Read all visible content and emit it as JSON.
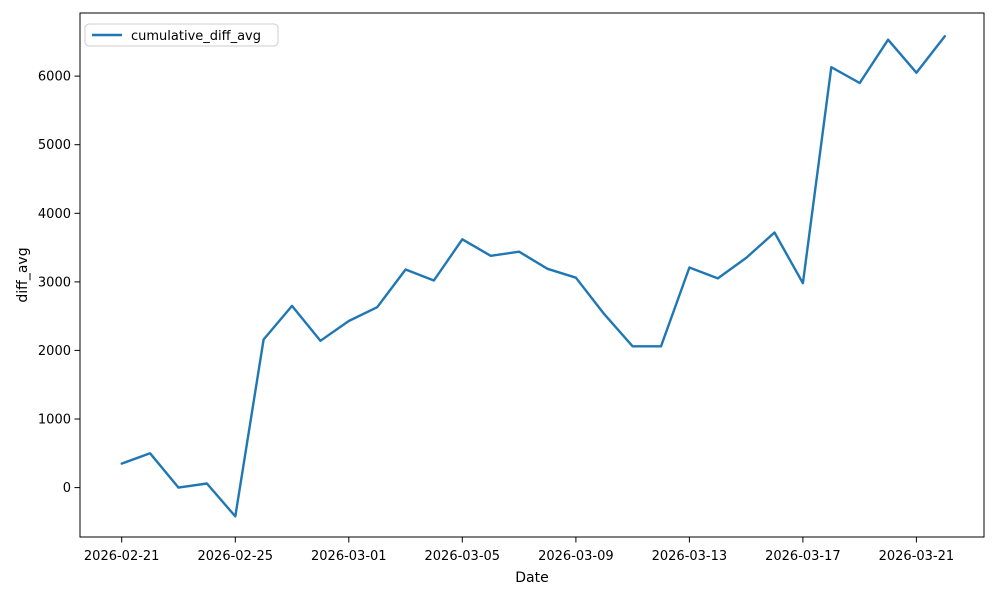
{
  "figure": {
    "background": "#ffffff"
  },
  "chart_data": {
    "type": "line",
    "title": "",
    "xlabel": "Date",
    "ylabel": "diff_avg",
    "grid": false,
    "legend": {
      "position": "upper-left",
      "entries": [
        "cumulative_diff_avg"
      ]
    },
    "line_color": "#1f77b4",
    "categories": [
      "2026-02-21",
      "2026-02-22",
      "2026-02-23",
      "2026-02-24",
      "2026-02-25",
      "2026-02-26",
      "2026-02-27",
      "2026-02-28",
      "2026-03-01",
      "2026-03-02",
      "2026-03-03",
      "2026-03-04",
      "2026-03-05",
      "2026-03-06",
      "2026-03-07",
      "2026-03-08",
      "2026-03-09",
      "2026-03-10",
      "2026-03-11",
      "2026-03-12",
      "2026-03-13",
      "2026-03-14",
      "2026-03-15",
      "2026-03-16",
      "2026-03-17",
      "2026-03-18",
      "2026-03-19",
      "2026-03-20",
      "2026-03-21",
      "2026-03-22"
    ],
    "series": [
      {
        "name": "cumulative_diff_avg",
        "values": [
          350,
          500,
          0,
          60,
          -420,
          2160,
          2650,
          2140,
          2430,
          2630,
          3180,
          3020,
          3620,
          3380,
          3440,
          3190,
          3060,
          2530,
          2060,
          2060,
          3210,
          3050,
          3350,
          3720,
          2980,
          6130,
          5900,
          6530,
          6050,
          6580
        ]
      }
    ],
    "ylim": [
      -720,
      6920
    ],
    "y_ticks": [
      0,
      1000,
      2000,
      3000,
      4000,
      5000,
      6000
    ],
    "x_ticks": [
      "2026-02-21",
      "2026-02-25",
      "2026-03-01",
      "2026-03-05",
      "2026-03-09",
      "2026-03-13",
      "2026-03-17",
      "2026-03-21"
    ]
  }
}
